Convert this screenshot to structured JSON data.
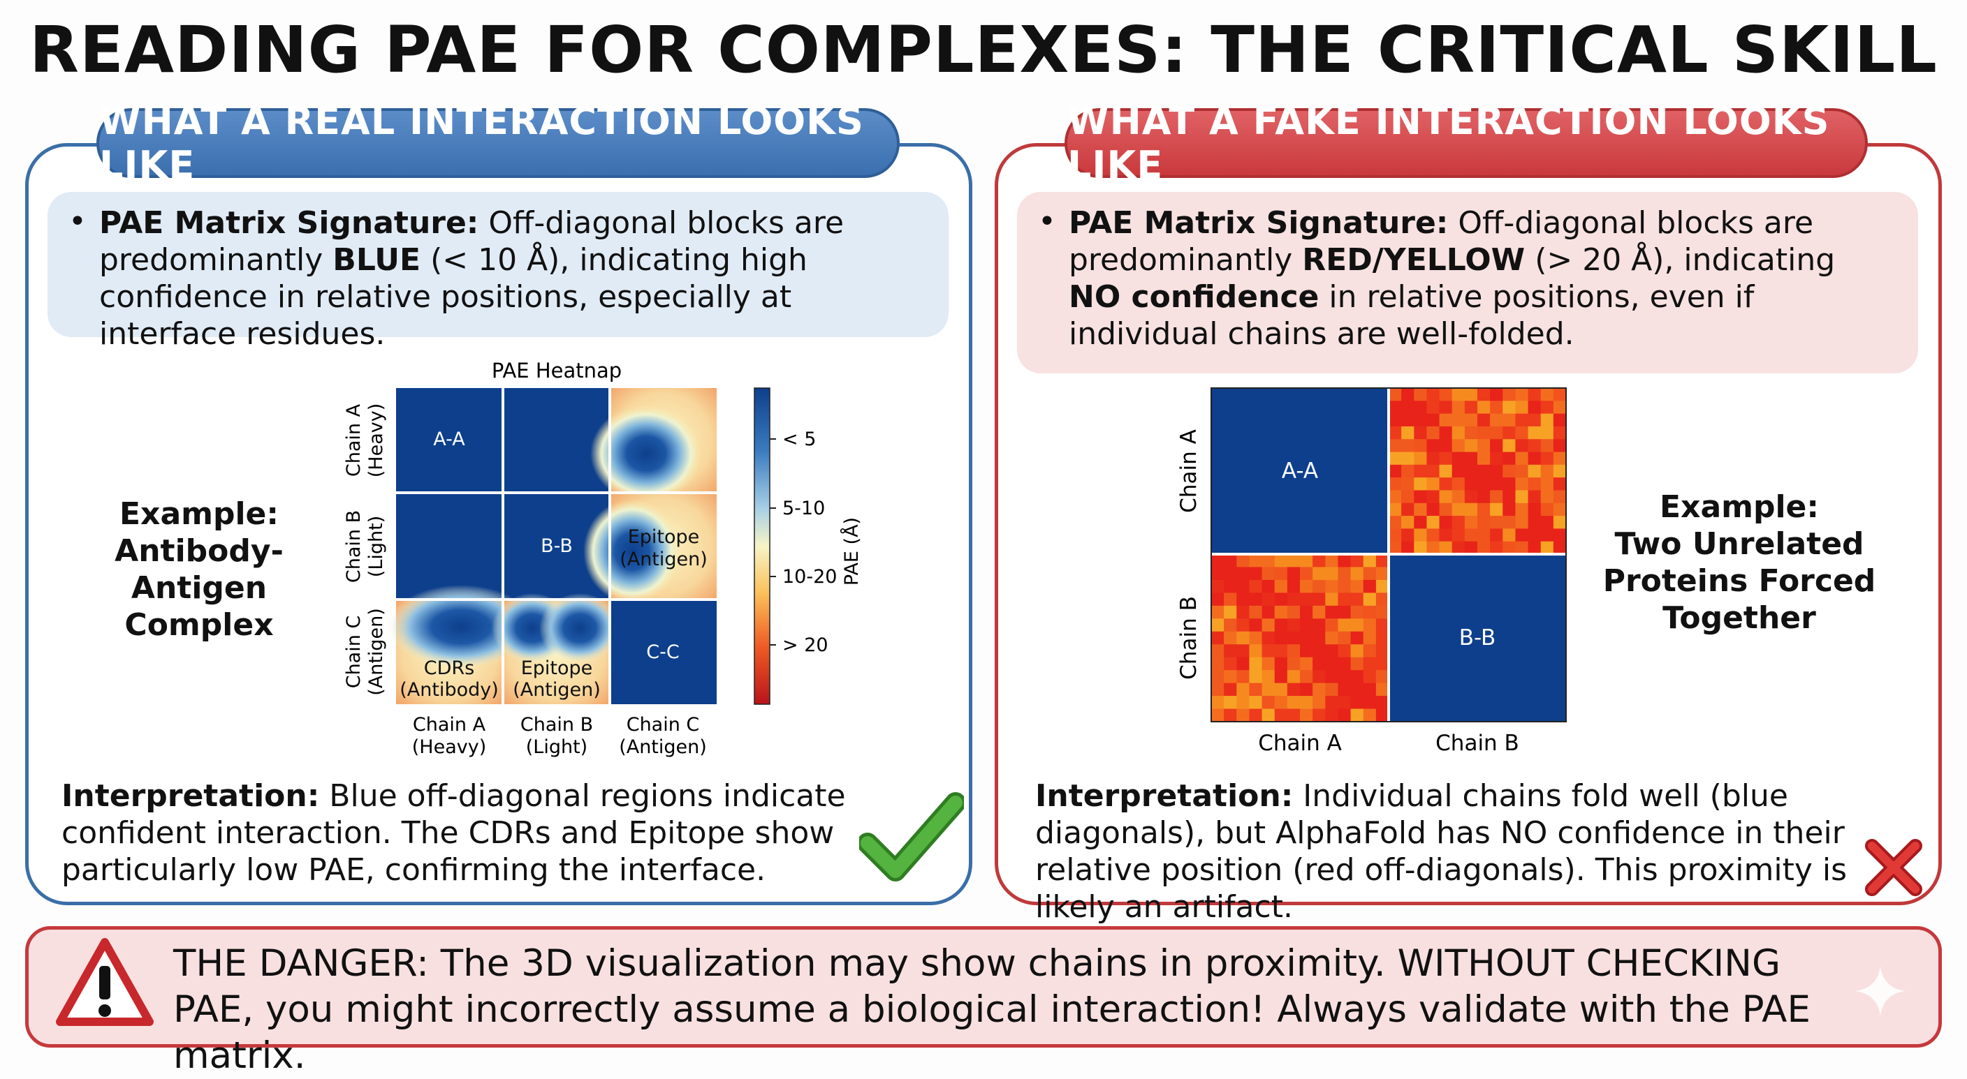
{
  "title": "READING PAE FOR COMPLEXES: THE CRITICAL SKILL",
  "real": {
    "header": "WHAT A REAL INTERACTION LOOKS LIKE",
    "signature_label": "PAE Matrix Signature:",
    "signature_pre": " Off-diagonal blocks are predominantly ",
    "signature_em": "BLUE",
    "signature_post": " (< 10 Å), indicating high confidence in relative positions, especially at interface residues.",
    "example_label": "Example:",
    "example_text": "Antibody-Antigen Complex",
    "interpretation_label": "Interpretation:",
    "interpretation_text": " Blue off-diagonal regions indicate confident interaction. The CDRs and Epitope show particularly low PAE, confirming the interface.",
    "check_icon": "check-mark-icon"
  },
  "fake": {
    "header": "WHAT A FAKE INTERACTION LOOKS LIKE",
    "signature_label": "PAE Matrix Signature:",
    "signature_pre": " Off-diagonal blocks are predominantly ",
    "signature_em": "RED/YELLOW",
    "signature_mid": " (> 20 Å), indicating ",
    "signature_em2": "NO confidence",
    "signature_post": " in relative positions, even if individual chains are well-folded.",
    "example_label": "Example:",
    "example_text": "Two Unrelated Proteins Forced Together",
    "interpretation_label": "Interpretation:",
    "interpretation_text": " Individual chains fold well (blue diagonals), but AlphaFold has NO confidence in their relative position (red off-diagonals). This proximity is likely an artifact.",
    "x_icon": "x-mark-icon"
  },
  "danger": {
    "text": "THE DANGER: The 3D visualization may show chains in proximity. WITHOUT CHECKING PAE, you might incorrectly assume a biological interaction! Always validate with the PAE matrix.",
    "icon": "warning-triangle-icon"
  },
  "colors": {
    "blue": "#0d3f8c",
    "red": "#e8231a",
    "orange": "#f68a1f",
    "real_border": "#3a6ea8",
    "fake_border": "#c0393b",
    "check": "#4aa33a"
  },
  "chart_data": [
    {
      "type": "heatmap",
      "title": "PAE Heatnap",
      "rows": [
        "Chain A (Heavy)",
        "Chain B (Light)",
        "Chain C (Antigen)"
      ],
      "columns": [
        "Chain A (Heavy)",
        "Chain B (Light)",
        "Chain C (Antigen)"
      ],
      "block_labels": {
        "A-A": "A-A",
        "B-B": "B-B",
        "C-C": "C-C",
        "epitope_right": "Epitope (Antigen)",
        "cdrs": "CDRs (Antibody)",
        "epitope_bottom": "Epitope (Antigen)"
      },
      "row_labels": [
        [
          "Chain A",
          "(Heavy)"
        ],
        [
          "Chain B",
          "(Light)"
        ],
        [
          "Chain C",
          "(Antigen)"
        ]
      ],
      "col_labels": [
        [
          "Chain A",
          "(Heavy)"
        ],
        [
          "Chain B",
          "(Light)"
        ],
        [
          "Chain C",
          "(Antigen)"
        ]
      ],
      "colorbar": {
        "label": "PAE (Å)",
        "ticks": [
          "< 5",
          "5-10",
          "10-20",
          "> 20"
        ]
      }
    },
    {
      "type": "heatmap",
      "rows": [
        "Chain A",
        "Chain B"
      ],
      "columns": [
        "Chain A",
        "Chain B"
      ],
      "block_labels": {
        "A-A": "A-A",
        "B-B": "B-B"
      },
      "row_labels": [
        "Chain A",
        "Chain B"
      ],
      "col_labels": [
        "Chain A",
        "Chain B"
      ]
    }
  ]
}
